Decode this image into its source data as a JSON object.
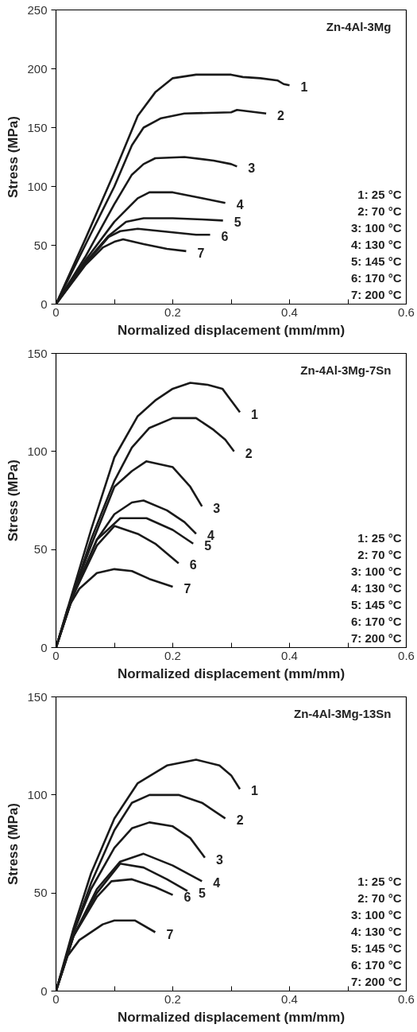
{
  "chart_data": [
    {
      "type": "line",
      "title": "Zn-4Al-3Mg",
      "xlabel": "Normalized displacement (mm/mm)",
      "ylabel": "Stress (MPa)",
      "xlim": [
        0,
        0.6
      ],
      "ylim": [
        0,
        250
      ],
      "xticks": [
        0,
        {
          "value": 0.1,
          "label": null
        },
        0.2,
        {
          "value": 0.3,
          "label": null
        },
        0.4,
        {
          "value": 0.5,
          "label": null
        },
        0.6
      ],
      "yticks": [
        0,
        50,
        100,
        150,
        200,
        250
      ],
      "grid": false,
      "legend": false,
      "marker": "none",
      "line_style": "solid",
      "annotations": [
        "1: 25 °C",
        "2: 70 °C",
        "3: 100 °C",
        "4: 130 °C",
        "5: 145 °C",
        "6: 170 °C",
        "7: 200 °C"
      ],
      "series": [
        {
          "name": "1",
          "color": "#1a1a1a",
          "x": [
            0,
            0.05,
            0.1,
            0.14,
            0.17,
            0.2,
            0.24,
            0.3,
            0.32,
            0.35,
            0.38,
            0.39,
            0.4
          ],
          "values": [
            0,
            55,
            112,
            160,
            180,
            192,
            195,
            195,
            193,
            192,
            190,
            187,
            186
          ]
        },
        {
          "name": "2",
          "color": "#1a1a1a",
          "x": [
            0,
            0.05,
            0.1,
            0.13,
            0.15,
            0.18,
            0.22,
            0.3,
            0.31,
            0.36
          ],
          "values": [
            0,
            50,
            100,
            135,
            150,
            158,
            162,
            163,
            165,
            162
          ]
        },
        {
          "name": "3",
          "color": "#1a1a1a",
          "x": [
            0,
            0.05,
            0.1,
            0.13,
            0.15,
            0.17,
            0.22,
            0.27,
            0.3,
            0.31
          ],
          "values": [
            0,
            40,
            85,
            110,
            119,
            124,
            125,
            122,
            119,
            117
          ]
        },
        {
          "name": "4",
          "color": "#1a1a1a",
          "x": [
            0,
            0.05,
            0.1,
            0.14,
            0.16,
            0.2,
            0.25,
            0.29
          ],
          "values": [
            0,
            37,
            70,
            90,
            95,
            95,
            90,
            86
          ]
        },
        {
          "name": "5",
          "color": "#1a1a1a",
          "x": [
            0,
            0.05,
            0.09,
            0.12,
            0.15,
            0.2,
            0.25,
            0.286
          ],
          "values": [
            0,
            35,
            58,
            70,
            73,
            73,
            72,
            71
          ]
        },
        {
          "name": "6",
          "color": "#1a1a1a",
          "x": [
            0,
            0.05,
            0.09,
            0.11,
            0.14,
            0.2,
            0.24,
            0.264
          ],
          "values": [
            0,
            34,
            57,
            62,
            64,
            61,
            59,
            59
          ]
        },
        {
          "name": "7",
          "color": "#1a1a1a",
          "x": [
            0,
            0.05,
            0.08,
            0.1,
            0.115,
            0.15,
            0.19,
            0.223
          ],
          "values": [
            0,
            33,
            48,
            53,
            55,
            51,
            47,
            45
          ]
        }
      ]
    },
    {
      "type": "line",
      "title": "Zn-4Al-3Mg-7Sn",
      "xlabel": "Normalized displacement (mm/mm)",
      "ylabel": "Stress (MPa)",
      "xlim": [
        0,
        0.6
      ],
      "ylim": [
        0,
        150
      ],
      "xticks": [
        0,
        {
          "value": 0.1,
          "label": null
        },
        0.2,
        {
          "value": 0.3,
          "label": null
        },
        0.4,
        {
          "value": 0.5,
          "label": null
        },
        0.6
      ],
      "yticks": [
        0,
        50,
        100,
        150
      ],
      "grid": false,
      "legend": false,
      "marker": "none",
      "line_style": "solid",
      "annotations": [
        "1: 25 °C",
        "2: 70 °C",
        "3: 100 °C",
        "4: 130 °C",
        "5: 145 °C",
        "6: 170 °C",
        "7: 200 °C"
      ],
      "series": [
        {
          "name": "1",
          "color": "#1a1a1a",
          "x": [
            0,
            0.03,
            0.06,
            0.1,
            0.14,
            0.17,
            0.2,
            0.23,
            0.26,
            0.285,
            0.3,
            0.315
          ],
          "values": [
            0,
            30,
            60,
            97,
            118,
            126,
            132,
            135,
            134,
            132,
            126,
            120
          ]
        },
        {
          "name": "2",
          "color": "#1a1a1a",
          "x": [
            0,
            0.03,
            0.06,
            0.1,
            0.13,
            0.16,
            0.2,
            0.24,
            0.27,
            0.29,
            0.305
          ],
          "values": [
            0,
            28,
            55,
            85,
            102,
            112,
            117,
            117,
            111,
            106,
            100
          ]
        },
        {
          "name": "3",
          "color": "#1a1a1a",
          "x": [
            0,
            0.03,
            0.06,
            0.1,
            0.13,
            0.155,
            0.2,
            0.23,
            0.25
          ],
          "values": [
            0,
            28,
            52,
            82,
            90,
            95,
            92,
            82,
            72
          ]
        },
        {
          "name": "4",
          "color": "#1a1a1a",
          "x": [
            0,
            0.03,
            0.07,
            0.1,
            0.13,
            0.15,
            0.19,
            0.22,
            0.24
          ],
          "values": [
            0,
            27,
            55,
            68,
            74,
            75,
            70,
            64,
            58
          ]
        },
        {
          "name": "5",
          "color": "#1a1a1a",
          "x": [
            0,
            0.03,
            0.07,
            0.11,
            0.155,
            0.2,
            0.235
          ],
          "values": [
            0,
            27,
            55,
            66,
            66,
            60,
            53
          ]
        },
        {
          "name": "6",
          "color": "#1a1a1a",
          "x": [
            0,
            0.03,
            0.07,
            0.1,
            0.14,
            0.17,
            0.21
          ],
          "values": [
            0,
            27,
            52,
            62,
            58,
            53,
            43
          ]
        },
        {
          "name": "7",
          "color": "#1a1a1a",
          "x": [
            0,
            0.02,
            0.04,
            0.07,
            0.1,
            0.13,
            0.16,
            0.2
          ],
          "values": [
            0,
            20,
            30,
            38,
            40,
            39,
            35,
            31
          ]
        }
      ]
    },
    {
      "type": "line",
      "title": "Zn-4Al-3Mg-13Sn",
      "xlabel": "Normalized displacement (mm/mm)",
      "ylabel": "Stress (MPa)",
      "xlim": [
        0,
        0.6
      ],
      "ylim": [
        0,
        150
      ],
      "xticks": [
        0,
        {
          "value": 0.1,
          "label": null
        },
        0.2,
        {
          "value": 0.3,
          "label": null
        },
        0.4,
        {
          "value": 0.5,
          "label": null
        },
        0.6
      ],
      "yticks": [
        0,
        50,
        100,
        150
      ],
      "grid": false,
      "legend": false,
      "marker": "none",
      "line_style": "solid",
      "annotations": [
        "1: 25 °C",
        "2: 70 °C",
        "3: 100 °C",
        "4: 130 °C",
        "5: 145 °C",
        "6: 170 °C",
        "7: 200 °C"
      ],
      "series": [
        {
          "name": "1",
          "color": "#1a1a1a",
          "x": [
            0,
            0.03,
            0.06,
            0.1,
            0.14,
            0.19,
            0.24,
            0.28,
            0.3,
            0.315
          ],
          "values": [
            0,
            32,
            60,
            88,
            106,
            115,
            118,
            115,
            110,
            103
          ]
        },
        {
          "name": "2",
          "color": "#1a1a1a",
          "x": [
            0,
            0.03,
            0.06,
            0.1,
            0.13,
            0.16,
            0.21,
            0.25,
            0.29
          ],
          "values": [
            0,
            30,
            55,
            82,
            96,
            100,
            100,
            96,
            88
          ]
        },
        {
          "name": "3",
          "color": "#1a1a1a",
          "x": [
            0,
            0.03,
            0.06,
            0.1,
            0.13,
            0.16,
            0.2,
            0.23,
            0.255
          ],
          "values": [
            0,
            30,
            52,
            73,
            83,
            86,
            84,
            78,
            68
          ]
        },
        {
          "name": "4",
          "color": "#1a1a1a",
          "x": [
            0,
            0.03,
            0.07,
            0.11,
            0.15,
            0.2,
            0.25
          ],
          "values": [
            0,
            28,
            52,
            66,
            70,
            64,
            56
          ]
        },
        {
          "name": "5",
          "color": "#1a1a1a",
          "x": [
            0,
            0.03,
            0.07,
            0.11,
            0.15,
            0.19,
            0.225
          ],
          "values": [
            0,
            28,
            50,
            65,
            63,
            57,
            51
          ]
        },
        {
          "name": "6",
          "color": "#1a1a1a",
          "x": [
            0,
            0.03,
            0.07,
            0.095,
            0.13,
            0.17,
            0.2
          ],
          "values": [
            0,
            28,
            48,
            56,
            57,
            53,
            49
          ]
        },
        {
          "name": "7",
          "color": "#1a1a1a",
          "x": [
            0,
            0.02,
            0.04,
            0.08,
            0.1,
            0.135,
            0.17
          ],
          "values": [
            0,
            18,
            26,
            34,
            36,
            36,
            30
          ]
        }
      ]
    }
  ]
}
